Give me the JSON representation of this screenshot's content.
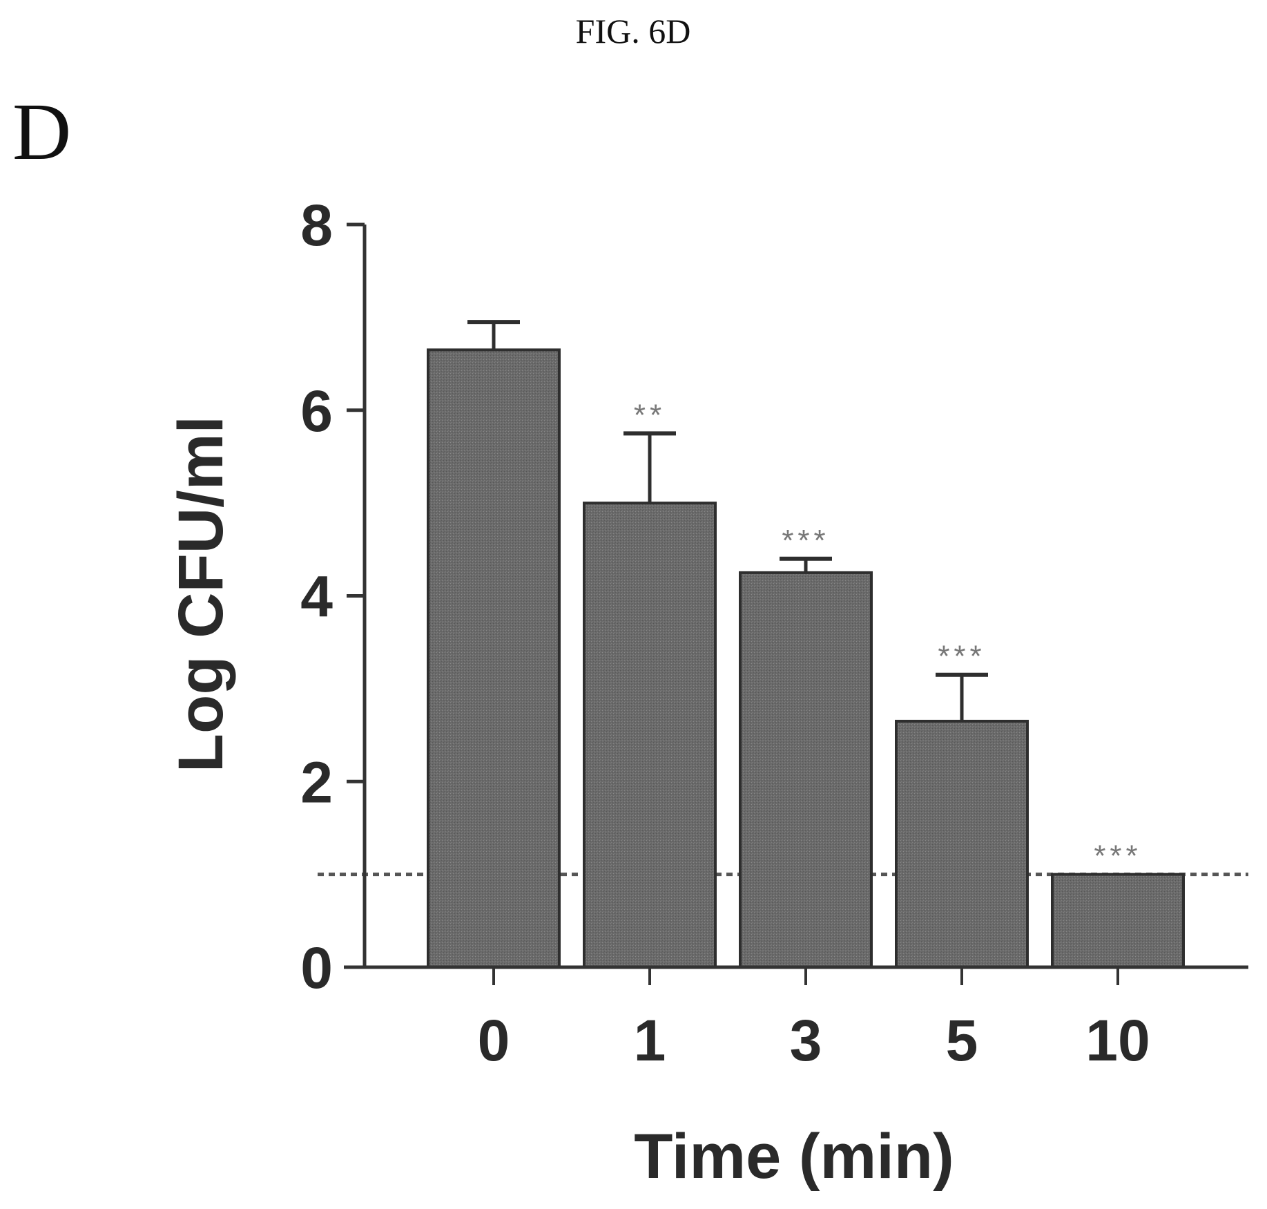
{
  "figure_title": "FIG. 6D",
  "panel_label": "D",
  "chart_data": {
    "type": "bar",
    "title": "",
    "xlabel": "Time (min)",
    "ylabel": "Log CFU/ml",
    "categories": [
      "0",
      "1",
      "3",
      "5",
      "10"
    ],
    "values": [
      6.65,
      5.0,
      4.25,
      2.65,
      1.0
    ],
    "error_upper": [
      6.95,
      5.75,
      4.4,
      3.15,
      1.0
    ],
    "significance": [
      "",
      "**",
      "***",
      "***",
      "***"
    ],
    "ylim": [
      0,
      8
    ],
    "yticks": [
      "0",
      "2",
      "4",
      "6",
      "8"
    ],
    "reference_line": {
      "y": 1.0,
      "style": "dotted"
    },
    "grid": false,
    "legend": "none",
    "bar_color": "#6a6a6a",
    "axis_color": "#333333"
  }
}
